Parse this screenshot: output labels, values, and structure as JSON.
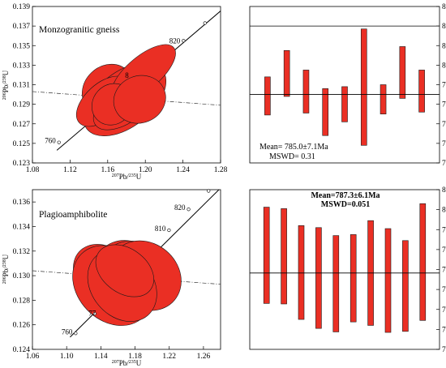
{
  "chart_data": [
    {
      "id": "p1",
      "type": "scatter",
      "subtype": "concordia",
      "title": "Monzogranitic gneiss",
      "xlabel": "207Pb/235U",
      "ylabel": "206Pb/238U",
      "xlim": [
        1.08,
        1.28
      ],
      "ylim": [
        0.123,
        0.139
      ],
      "xticks": [
        "1.08",
        "1.12",
        "1.16",
        "1.20",
        "1.24",
        "1.28"
      ],
      "yticks": [
        "0.123",
        "0.125",
        "0.127",
        "0.129",
        "0.131",
        "0.133",
        "0.135",
        "0.137",
        "0.139"
      ],
      "concordia_labels": [
        {
          "text": "760",
          "x": 1.1082,
          "y": 0.1251
        },
        {
          "text": "8",
          "x": 1.1858,
          "y": 0.1318
        },
        {
          "text": "820",
          "x": 1.2406,
          "y": 0.1353
        }
      ],
      "concordia_line": {
        "x": [
          1.106,
          1.282
        ],
        "y": [
          0.1243,
          0.1387
        ]
      },
      "concordia_markers": {
        "x": [
          1.1082,
          1.2406,
          1.2634
        ],
        "y": [
          0.1251,
          0.1355,
          0.1373
        ]
      },
      "discordia_line": {
        "x": [
          1.08,
          1.28
        ],
        "y": [
          0.1303,
          0.1289
        ]
      },
      "ellipses": [
        {
          "x": 1.16,
          "y": 0.1305,
          "rx": 0.029,
          "ry": 0.0024,
          "angle": 44,
          "ry_scale": 1
        },
        {
          "x": 1.178,
          "y": 0.1295,
          "rx": 0.051,
          "ry": 0.0028,
          "angle": 38
        },
        {
          "x": 1.155,
          "y": 0.1293,
          "rx": 0.034,
          "ry": 0.0018,
          "angle": 42
        },
        {
          "x": 1.198,
          "y": 0.1322,
          "rx": 0.042,
          "ry": 0.0017,
          "angle": 40
        },
        {
          "x": 1.178,
          "y": 0.129,
          "rx": 0.038,
          "ry": 0.0019,
          "angle": 35
        },
        {
          "x": 1.165,
          "y": 0.129,
          "rx": 0.023,
          "ry": 0.002,
          "angle": 48
        },
        {
          "x": 1.194,
          "y": 0.1295,
          "rx": 0.028,
          "ry": 0.0024,
          "angle": 22
        }
      ]
    },
    {
      "id": "p2",
      "type": "bar",
      "subtype": "range",
      "ylim": [
        750,
        830
      ],
      "yticks": [
        "750",
        "760",
        "770",
        "780",
        "790",
        "800",
        "810",
        "820",
        "830"
      ],
      "mean_line": 785,
      "ref_line": 820,
      "ranges": [
        [
          774.5,
          794
        ],
        [
          784,
          807.5
        ],
        [
          775.5,
          797.5
        ],
        [
          764,
          788
        ],
        [
          771,
          789
        ],
        [
          759,
          818.5
        ],
        [
          775,
          790
        ],
        [
          783,
          809.5
        ],
        [
          776,
          797.5
        ]
      ],
      "mean_text": "Mean= 785.0±7.1Ma",
      "mswd_text": "MSWD= 0.31"
    },
    {
      "id": "p3",
      "type": "scatter",
      "subtype": "concordia",
      "title": "Plagioamphibolite",
      "xlabel": "207Pb/235U",
      "ylabel": "206Pb/238U",
      "xlim": [
        1.06,
        1.28
      ],
      "ylim": [
        0.124,
        0.137
      ],
      "xticks": [
        "1.06",
        "1.10",
        "1.14",
        "1.18",
        "1.22",
        "1.26"
      ],
      "yticks": [
        "0.124",
        "0.126",
        "0.128",
        "0.130",
        "0.132",
        "0.134",
        "0.136"
      ],
      "concordia_labels": [
        {
          "text": "760",
          "x": 1.1106,
          "y": 0.1253
        },
        {
          "text": "77",
          "x": 1.138,
          "y": 0.1268
        },
        {
          "text": "810",
          "x": 1.2197,
          "y": 0.1337
        },
        {
          "text": "820",
          "x": 1.2426,
          "y": 0.1354
        }
      ],
      "concordia_line": {
        "x": [
          1.104,
          1.281
        ],
        "y": [
          0.125,
          0.1372
        ]
      },
      "concordia_markers": {
        "x": [
          1.1106,
          1.1328,
          1.2197,
          1.2426,
          1.266
        ],
        "y": [
          0.1253,
          0.1269,
          0.1337,
          0.1354,
          0.1369
        ]
      },
      "discordia_line": {
        "x": [
          1.06,
          1.28
        ],
        "y": [
          0.1304,
          0.1293
        ]
      },
      "ellipses": [
        {
          "x": 1.1455,
          "y": 0.13,
          "rx": 0.032,
          "ry": 0.0029,
          "angle": 48
        },
        {
          "x": 1.1535,
          "y": 0.1292,
          "rx": 0.041,
          "ry": 0.0036,
          "angle": 44
        },
        {
          "x": 1.174,
          "y": 0.13,
          "rx": 0.038,
          "ry": 0.0031,
          "angle": 46
        },
        {
          "x": 1.1785,
          "y": 0.1302,
          "rx": 0.036,
          "ry": 0.0028,
          "angle": 52
        },
        {
          "x": 1.192,
          "y": 0.13,
          "rx": 0.038,
          "ry": 0.0031,
          "angle": 50
        },
        {
          "x": 1.165,
          "y": 0.1292,
          "rx": 0.036,
          "ry": 0.0032,
          "angle": 40
        },
        {
          "x": 1.168,
          "y": 0.1304,
          "rx": 0.026,
          "ry": 0.0026,
          "angle": 54
        }
      ]
    },
    {
      "id": "p4",
      "type": "bar",
      "subtype": "range",
      "ylim": [
        772,
        804
      ],
      "yticks": [
        "772",
        "776",
        "780",
        "784",
        "788",
        "792",
        "796",
        "800",
        "804"
      ],
      "mean_line": 787.3,
      "ranges": [
        [
          781.2,
          800.5
        ],
        [
          781.1,
          800.2
        ],
        [
          778,
          796.8
        ],
        [
          776.2,
          796.4
        ],
        [
          775.5,
          794.8
        ],
        [
          777.5,
          795
        ],
        [
          776.8,
          797.8
        ],
        [
          775.4,
          796.2
        ],
        [
          775.6,
          793.8
        ],
        [
          777.8,
          801.2
        ]
      ],
      "mean_text": "Mean=787.3±6.1Ma",
      "mswd_text": "MSWD=0.051"
    }
  ]
}
